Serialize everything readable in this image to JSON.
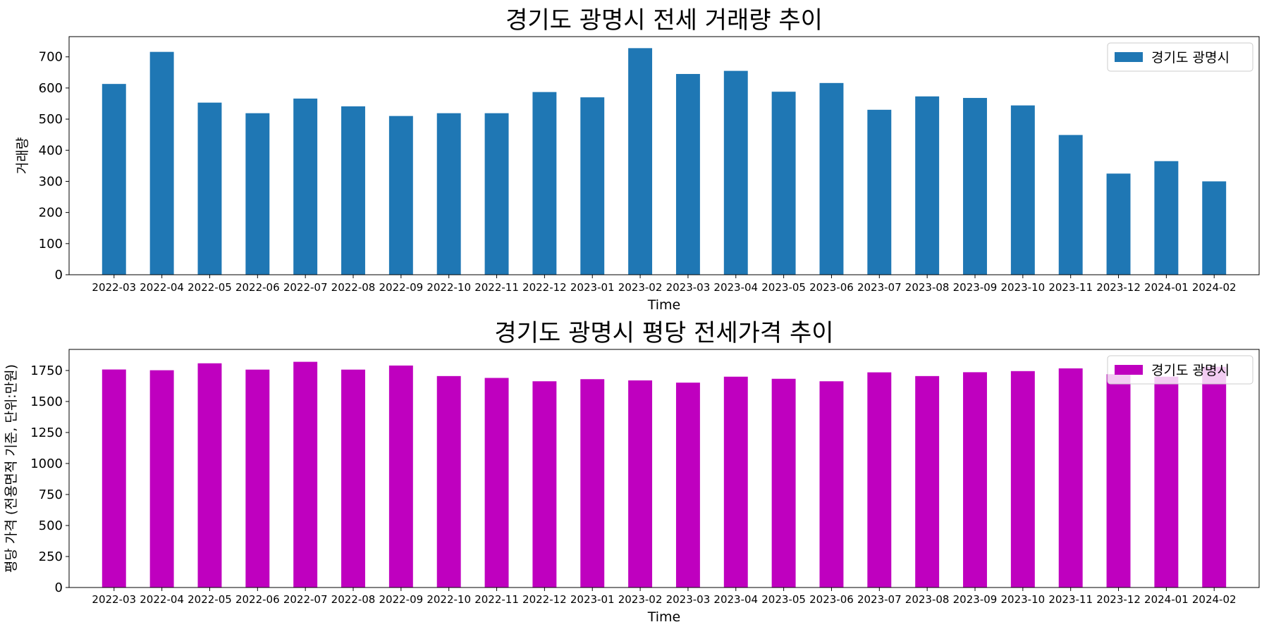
{
  "chart_data": [
    {
      "type": "bar",
      "title": "경기도 광명시 전세 거래량 추이",
      "xlabel": "Time",
      "ylabel": "거래량",
      "categories": [
        "2022-03",
        "2022-04",
        "2022-05",
        "2022-06",
        "2022-07",
        "2022-08",
        "2022-09",
        "2022-10",
        "2022-11",
        "2022-12",
        "2023-01",
        "2023-02",
        "2023-03",
        "2023-04",
        "2023-05",
        "2023-06",
        "2023-07",
        "2023-08",
        "2023-09",
        "2023-10",
        "2023-11",
        "2023-12",
        "2024-01",
        "2024-02"
      ],
      "series": [
        {
          "name": "경기도 광명시",
          "color": "#1f77b4",
          "values": [
            613,
            716,
            553,
            519,
            566,
            541,
            510,
            519,
            519,
            587,
            570,
            728,
            645,
            655,
            588,
            616,
            530,
            573,
            568,
            544,
            449,
            325,
            365,
            300
          ]
        }
      ],
      "ylim": [
        0,
        765
      ],
      "yticks": [
        0,
        100,
        200,
        300,
        400,
        500,
        600,
        700
      ],
      "grid": false,
      "legend": "top-right"
    },
    {
      "type": "bar",
      "title": "경기도 광명시 평당 전세가격 추이",
      "xlabel": "Time",
      "ylabel": "평당 가격 (전용면적 기준, 단위:만원)",
      "categories": [
        "2022-03",
        "2022-04",
        "2022-05",
        "2022-06",
        "2022-07",
        "2022-08",
        "2022-09",
        "2022-10",
        "2022-11",
        "2022-12",
        "2023-01",
        "2023-02",
        "2023-03",
        "2023-04",
        "2023-05",
        "2023-06",
        "2023-07",
        "2023-08",
        "2023-09",
        "2023-10",
        "2023-11",
        "2023-12",
        "2024-01",
        "2024-02"
      ],
      "series": [
        {
          "name": "경기도 광명시",
          "color": "#bf00bf",
          "values": [
            1758,
            1752,
            1808,
            1757,
            1820,
            1757,
            1790,
            1705,
            1690,
            1663,
            1680,
            1670,
            1652,
            1700,
            1683,
            1663,
            1735,
            1705,
            1736,
            1745,
            1767,
            1720,
            1700,
            1780
          ]
        }
      ],
      "ylim": [
        0,
        1920
      ],
      "yticks": [
        0,
        250,
        500,
        750,
        1000,
        1250,
        1500,
        1750
      ],
      "grid": false,
      "legend": "top-right"
    }
  ]
}
